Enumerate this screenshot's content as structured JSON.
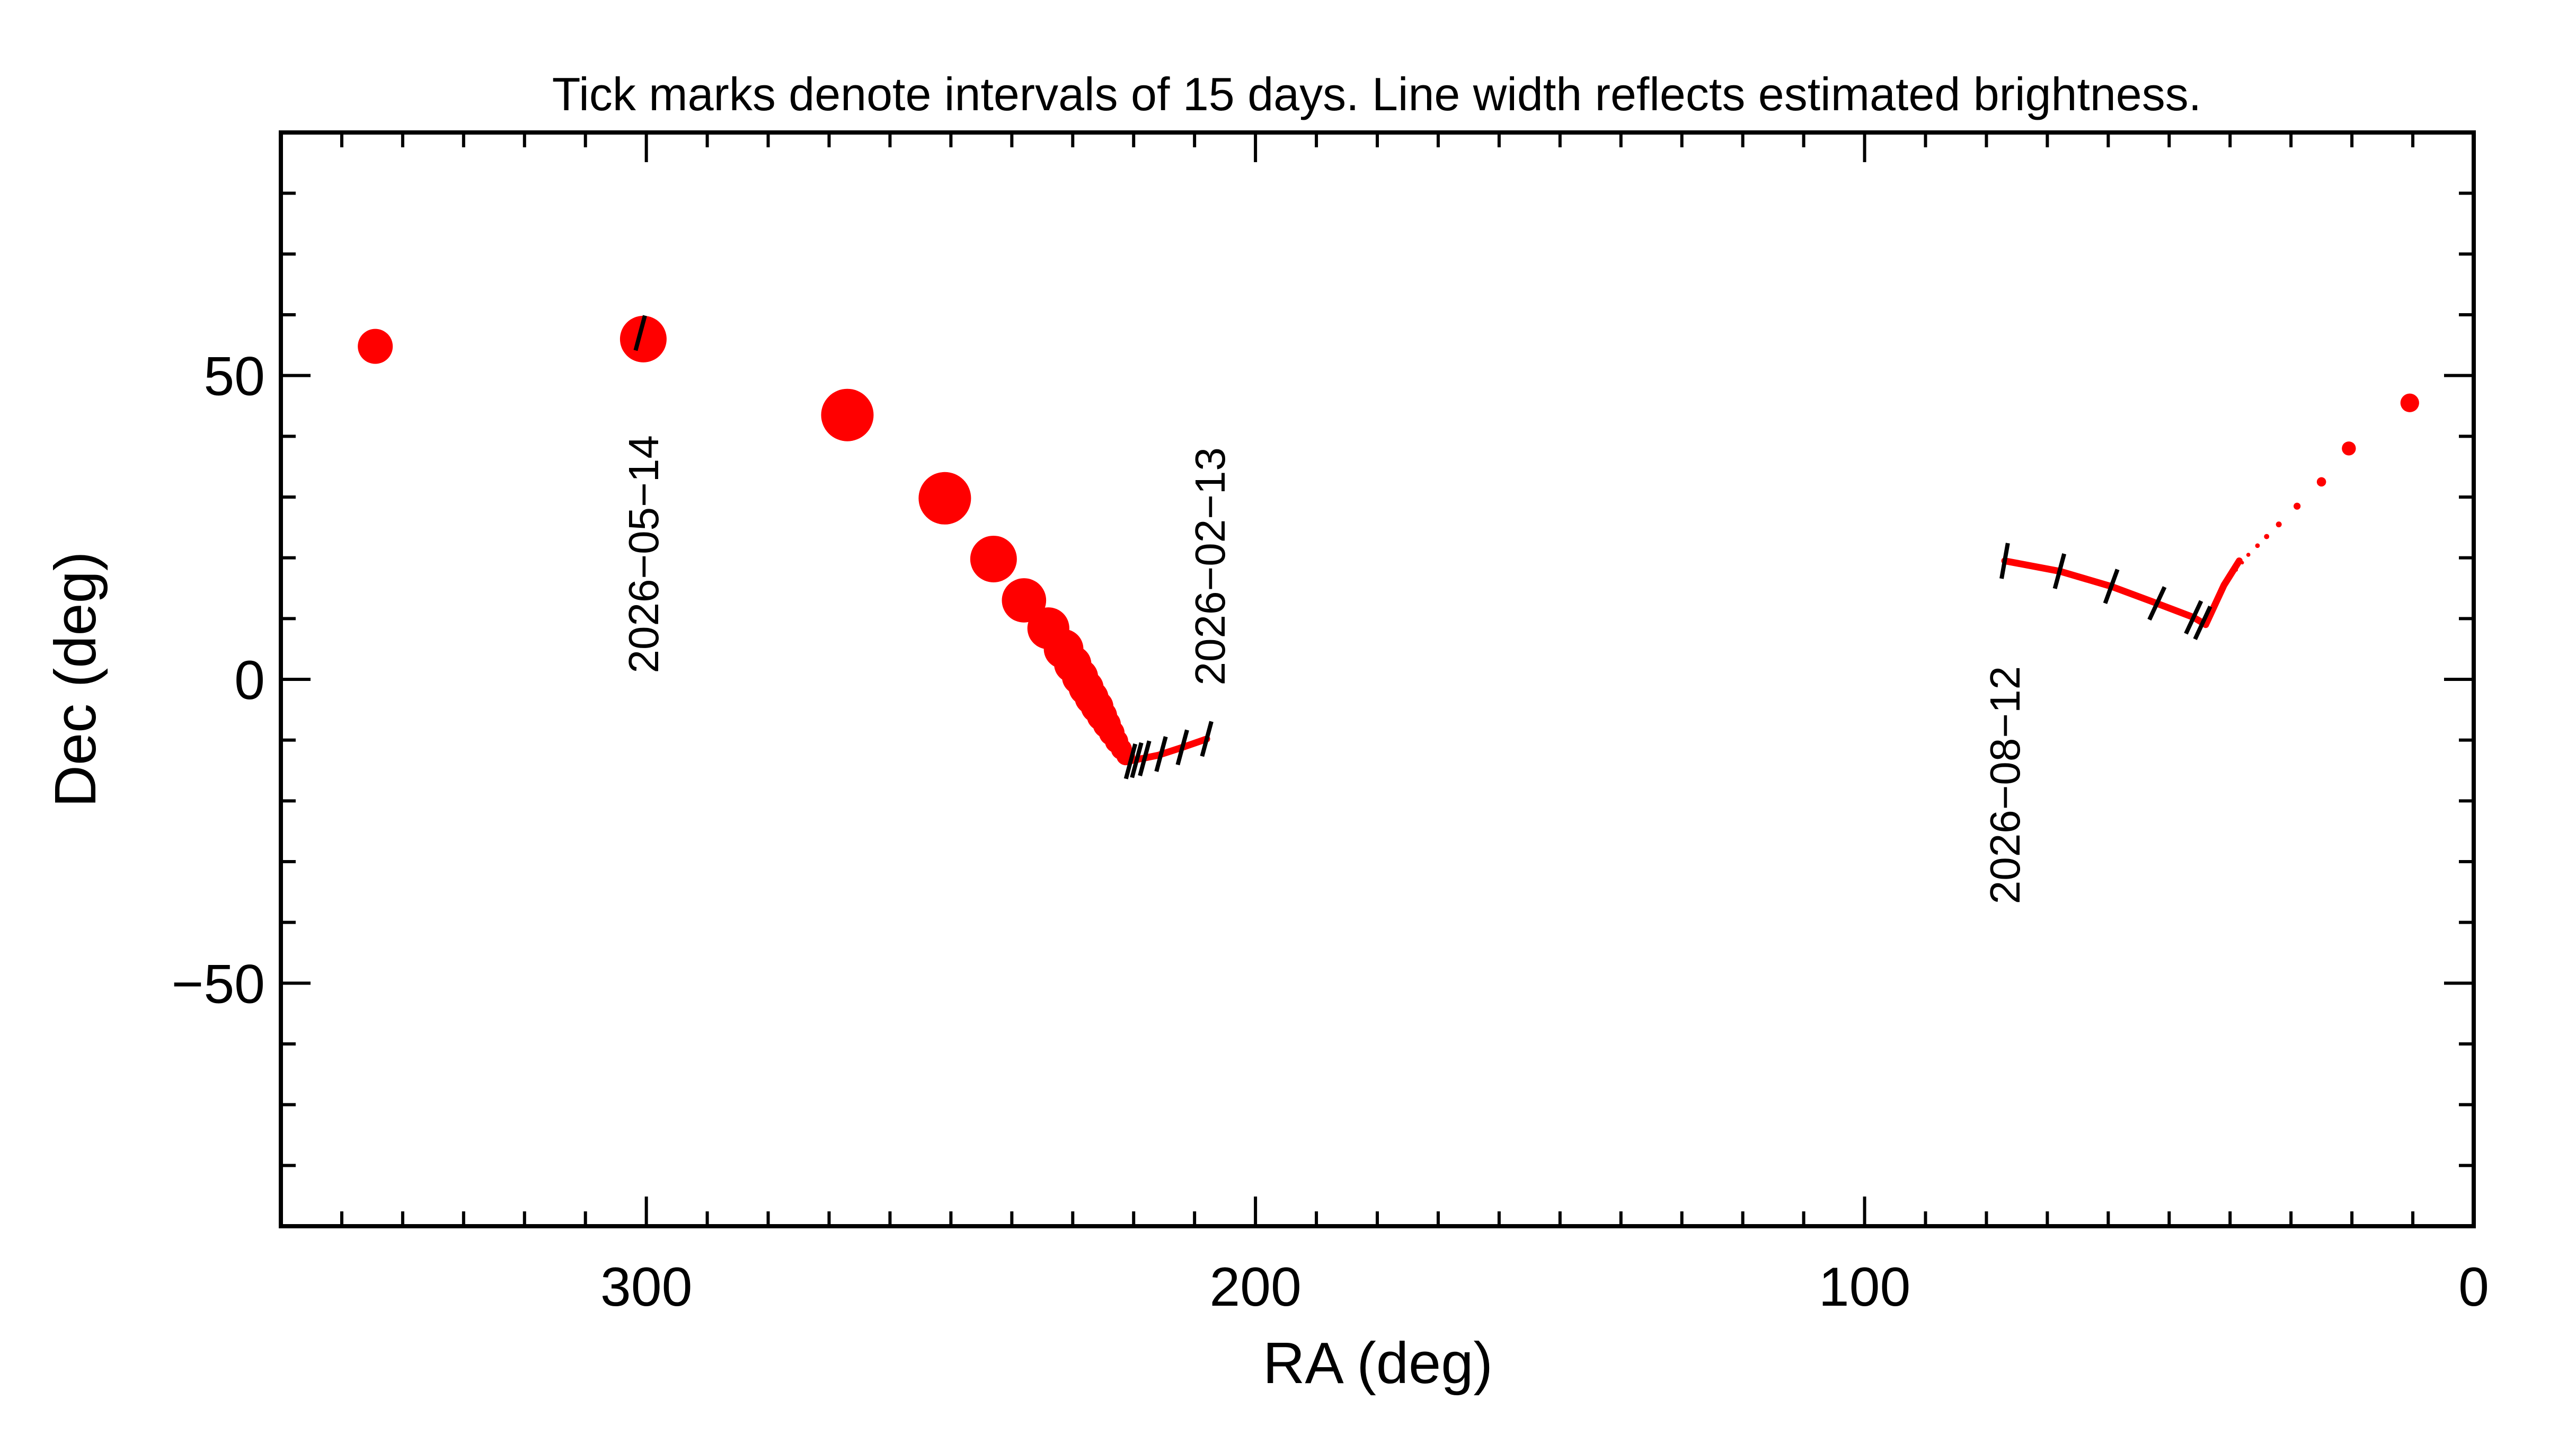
{
  "chart_data": {
    "type": "scatter",
    "title": "Tick marks denote intervals of 15 days.  Line width reflects estimated brightness.",
    "xlabel": "RA (deg)",
    "ylabel": "Dec (deg)",
    "xlim": [
      360,
      0
    ],
    "ylim": [
      -90,
      90
    ],
    "x_ticks": [
      {
        "value": 300,
        "label": "300"
      },
      {
        "value": 200,
        "label": "200"
      },
      {
        "value": 100,
        "label": "100"
      },
      {
        "value": 0,
        "label": "0"
      }
    ],
    "y_ticks": [
      {
        "value": 50,
        "label": "50"
      },
      {
        "value": 0,
        "label": "0"
      },
      {
        "value": -50,
        "label": "−50"
      }
    ],
    "grid": false,
    "colors": {
      "track": "#ff0000",
      "ticks": "#000000"
    },
    "points": [
      {
        "ra": 344.5,
        "dec": 54.8,
        "size": 3
      },
      {
        "ra": 300.5,
        "dec": 56.0,
        "size": 4
      },
      {
        "ra": 267.0,
        "dec": 43.5,
        "size": 4.5
      },
      {
        "ra": 251.0,
        "dec": 29.8,
        "size": 4.5
      },
      {
        "ra": 243.0,
        "dec": 19.8,
        "size": 4
      },
      {
        "ra": 238.0,
        "dec": 13.0,
        "size": 3.8
      },
      {
        "ra": 234.0,
        "dec": 8.4,
        "size": 3.6
      },
      {
        "ra": 231.5,
        "dec": 5.0,
        "size": 3.4
      },
      {
        "ra": 230.0,
        "dec": 2.5,
        "size": 3.2
      },
      {
        "ra": 228.8,
        "dec": 0.4,
        "size": 3.1
      },
      {
        "ra": 227.8,
        "dec": -1.4,
        "size": 3.0
      },
      {
        "ra": 226.9,
        "dec": -3.0,
        "size": 2.9
      },
      {
        "ra": 226.0,
        "dec": -4.5,
        "size": 2.8
      },
      {
        "ra": 225.2,
        "dec": -6.0,
        "size": 2.6
      },
      {
        "ra": 224.4,
        "dec": -7.4,
        "size": 2.4
      },
      {
        "ra": 223.6,
        "dec": -8.8,
        "size": 2.2
      },
      {
        "ra": 222.8,
        "dec": -10.2,
        "size": 2.0
      },
      {
        "ra": 222.0,
        "dec": -11.5,
        "size": 1.8
      },
      {
        "ra": 221.3,
        "dec": -12.6,
        "size": 1.6
      },
      {
        "ra": 20.5,
        "dec": 38.0,
        "size": 1.2
      },
      {
        "ra": 10.5,
        "dec": 45.5,
        "size": 1.6
      },
      {
        "ra": 25.0,
        "dec": 32.5,
        "size": 0.8
      },
      {
        "ra": 29.0,
        "dec": 28.5,
        "size": 0.6
      },
      {
        "ra": 32.0,
        "dec": 25.5,
        "size": 0.5
      },
      {
        "ra": 34.0,
        "dec": 23.5,
        "size": 0.45
      },
      {
        "ra": 35.5,
        "dec": 22.0,
        "size": 0.4
      },
      {
        "ra": 37.0,
        "dec": 20.5,
        "size": 0.35
      },
      {
        "ra": 38.0,
        "dec": 19.2,
        "size": 0.3
      },
      {
        "ra": 39.0,
        "dec": 18.0,
        "size": 0.3
      },
      {
        "ra": 40.0,
        "dec": 16.8,
        "size": 0.28
      }
    ],
    "tracks": [
      {
        "name": "",
        "line_width": 1.6,
        "points": [
          [
            221,
            -13.5
          ],
          [
            216,
            -12.5
          ],
          [
            212,
            -11.2
          ],
          [
            208,
            -9.8
          ]
        ]
      },
      {
        "name": "",
        "line_width": 1.6,
        "points": [
          [
            77,
            19.5
          ],
          [
            68,
            17.8
          ],
          [
            59.5,
            15.3
          ],
          [
            52,
            12.5
          ],
          [
            46,
            10.2
          ],
          [
            44,
            9.0
          ],
          [
            41,
            15.5
          ],
          [
            38.5,
            19.5
          ]
        ]
      }
    ],
    "date_ticks": [
      {
        "ra": 301,
        "dec": 57,
        "angle": 75
      },
      {
        "ra": 220.5,
        "dec": -13.5,
        "angle": 75
      },
      {
        "ra": 219.5,
        "dec": -13.3,
        "angle": 75
      },
      {
        "ra": 218.2,
        "dec": -13.0,
        "angle": 75
      },
      {
        "ra": 215.5,
        "dec": -12.3,
        "angle": 75
      },
      {
        "ra": 212,
        "dec": -11.2,
        "angle": 75
      },
      {
        "ra": 208,
        "dec": -9.8,
        "angle": 75
      },
      {
        "ra": 77,
        "dec": 19.5,
        "angle": 80
      },
      {
        "ra": 68,
        "dec": 17.8,
        "angle": 75
      },
      {
        "ra": 59.5,
        "dec": 15.3,
        "angle": 70
      },
      {
        "ra": 52,
        "dec": 12.5,
        "angle": 65
      },
      {
        "ra": 46,
        "dec": 10.2,
        "angle": 65
      },
      {
        "ra": 44.5,
        "dec": 9.3,
        "angle": 65
      }
    ],
    "date_labels": [
      {
        "text": "2026−05−14",
        "ra": 300.5,
        "dec": 1
      },
      {
        "text": "2026−02−13",
        "ra": 207.5,
        "dec": -1
      },
      {
        "text": "2026−08−12",
        "ra": 77,
        "dec": -37
      }
    ]
  }
}
